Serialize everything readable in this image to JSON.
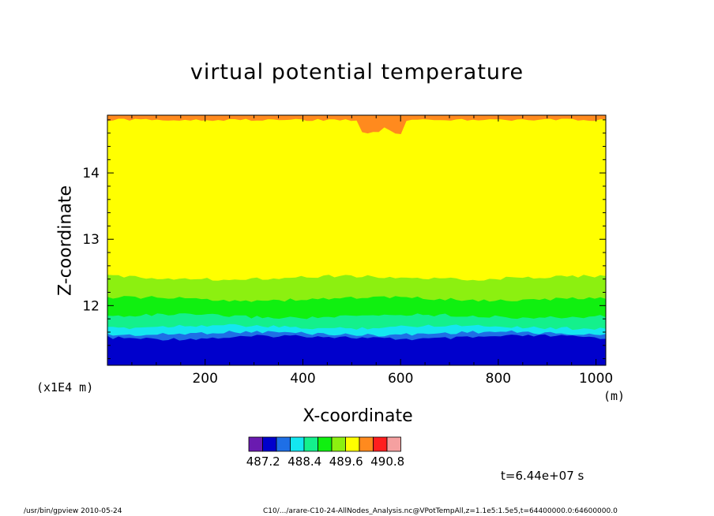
{
  "chart_data": {
    "type": "heatmap",
    "title": "virtual potential temperature",
    "xlabel": "X-coordinate",
    "ylabel": "Z-coordinate",
    "x_unit": "(m)",
    "y_scale_label": "(x1E4 m)",
    "xlim": [
      0,
      1020
    ],
    "ylim": [
      11.1,
      14.87
    ],
    "x_ticks": [
      200,
      400,
      600,
      800,
      1000
    ],
    "y_ticks": [
      12,
      13,
      14
    ],
    "colorbar": {
      "colors": [
        "#6a1bb0",
        "#0000cc",
        "#1e6fe6",
        "#14e6f0",
        "#14f08c",
        "#10f010",
        "#8cf010",
        "#ffff00",
        "#ff8a1e",
        "#ff1e1e",
        "#f5a0a0"
      ],
      "tick_labels": [
        "487.2",
        "488.4",
        "489.6",
        "490.8"
      ],
      "tick_after_box": [
        1,
        4,
        7,
        10
      ]
    },
    "bands": [
      {
        "color": "#0000cc",
        "z_top": 11.52
      },
      {
        "color": "#1e6fe6",
        "z_top": 11.58
      },
      {
        "color": "#14e6f0",
        "z_top": 11.68
      },
      {
        "color": "#14f08c",
        "z_top": 11.84
      },
      {
        "color": "#10f010",
        "z_top": 12.1
      },
      {
        "color": "#8cf010",
        "z_top": 12.42
      },
      {
        "color": "#ffff00",
        "z_top": 14.8
      },
      {
        "color": "#ff8a1e",
        "z_top": 14.87
      }
    ]
  },
  "time_label": "t=6.44e+07 s",
  "footer": {
    "left": "/usr/bin/gpview   2010-05-24",
    "right": "C10/.../arare-C10-24-AllNodes_Analysis.nc@VPotTempAll,z=1.1e5:1.5e5,t=64400000.0:64600000.0"
  }
}
